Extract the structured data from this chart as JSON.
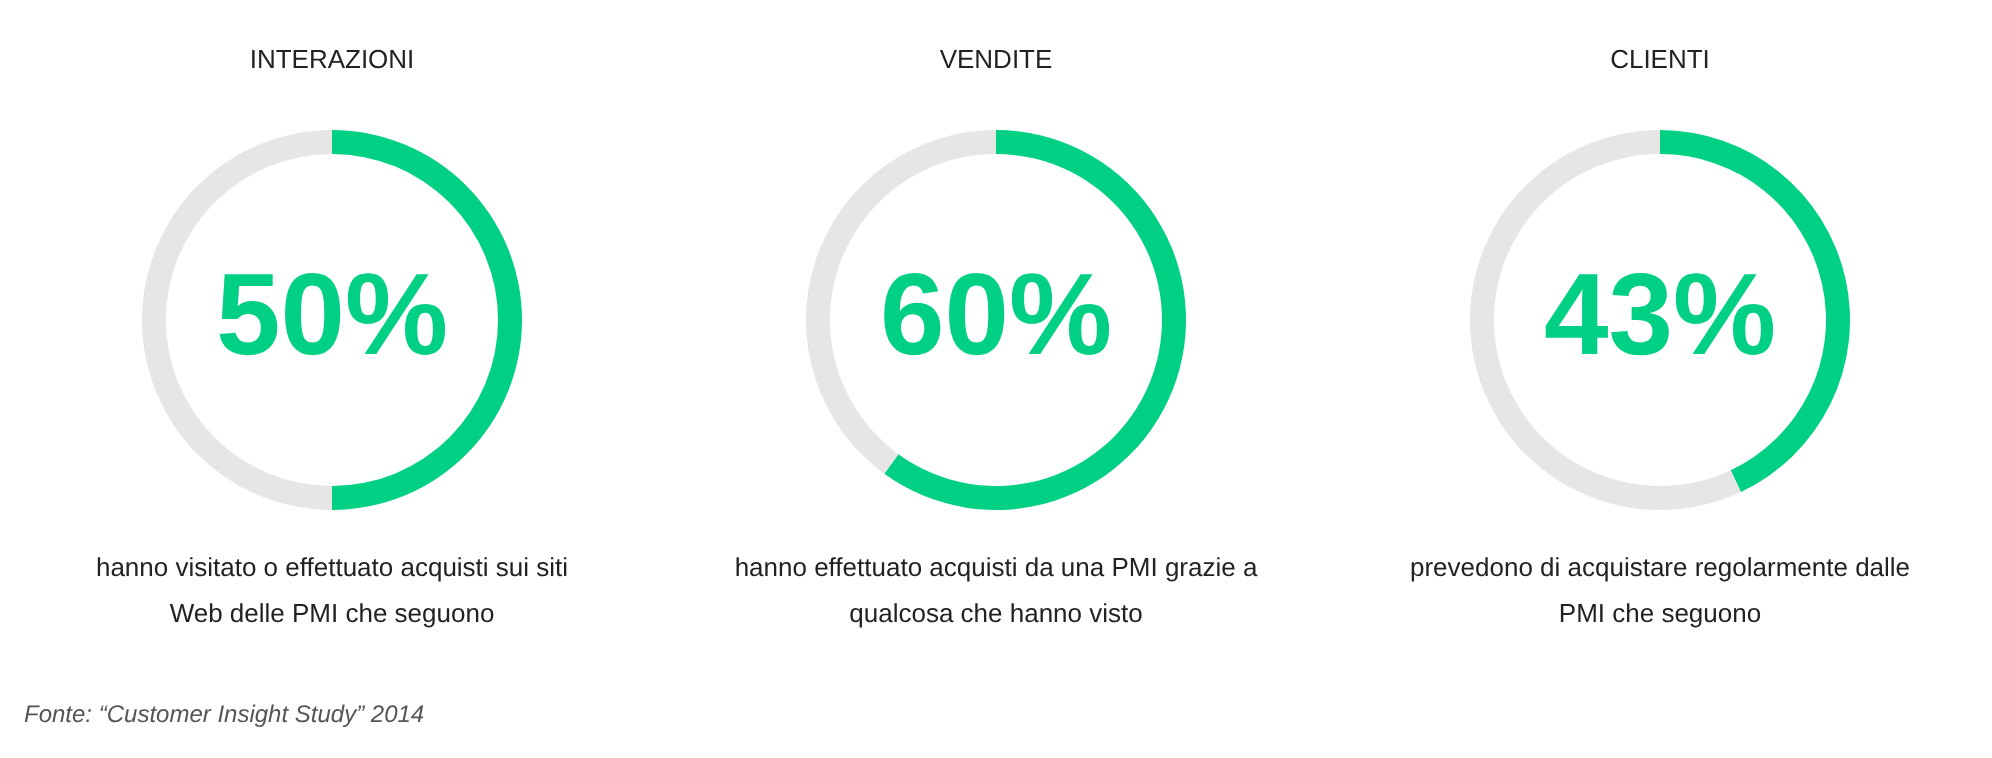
{
  "chart_data": [
    {
      "type": "donut",
      "title": "INTERAZIONI",
      "categories": [
        null,
        null
      ],
      "values": [
        50,
        50
      ],
      "colors": [
        "#00d084",
        "#e6e6e6"
      ],
      "value_labels": [
        "50%",
        null
      ],
      "legend": false,
      "annotations": [
        "hanno visitato o effettuato acquisti sui siti\nWeb delle PMI che seguono",
        "Fonte: “Customer Insight Study” 2014"
      ]
    },
    {
      "type": "donut",
      "title": "VENDITE",
      "categories": [
        null,
        null
      ],
      "values": [
        60,
        40
      ],
      "colors": [
        "#00d084",
        "#e6e6e6"
      ],
      "value_labels": [
        "60%",
        null
      ],
      "legend": false,
      "annotations": [
        "hanno effettuato acquisti da una PMI grazie a\nqualcosa che hanno visto"
      ]
    },
    {
      "type": "donut",
      "title": "CLIENTI",
      "categories": [
        null,
        null
      ],
      "values": [
        43,
        57
      ],
      "colors": [
        "#00d084",
        "#e6e6e6"
      ],
      "value_labels": [
        "43%",
        null
      ],
      "legend": false,
      "annotations": [
        "prevedono di acquistare regolarmente dalle\nPMI che seguono"
      ]
    }
  ]
}
